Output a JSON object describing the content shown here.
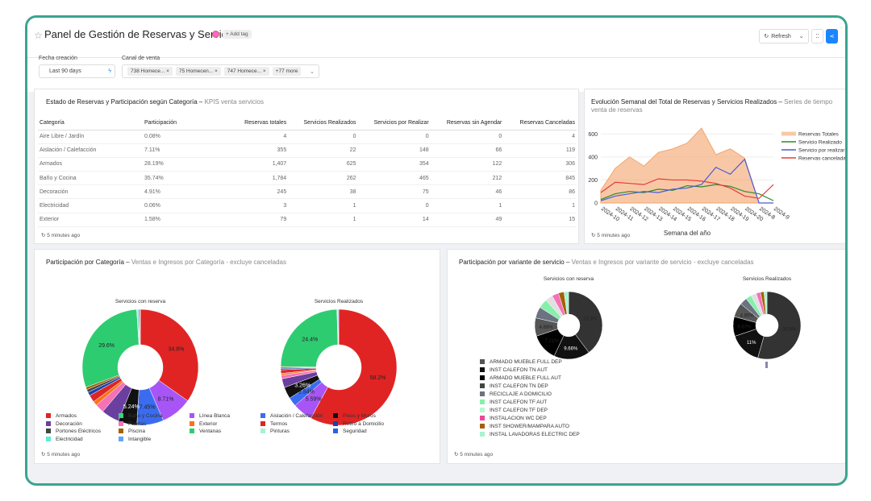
{
  "header": {
    "title": "Panel de Gestión de Reservas y Servicios",
    "add_tag": "+ Add tag",
    "refresh": "Refresh",
    "star_icon": "star-icon"
  },
  "filters": {
    "fecha_label": "Fecha creación",
    "fecha_value": "Last 90 days",
    "canal_label": "Canal de venta",
    "chips": [
      "738 Homece...",
      "75 Homecen...",
      "747 Homece..."
    ],
    "more": "+77 more"
  },
  "kpi_table": {
    "title": "Estado de Reservas y Participación según Categoría",
    "subtitle": "KPIS venta servicios",
    "columns": [
      "Categoría",
      "Participación",
      "Reservas totales",
      "Servicios Realizados",
      "Servicios por Realizar",
      "Reservas sin Agendar",
      "Reservas Canceladas"
    ],
    "rows": [
      [
        "Aire Libre / Jardín",
        "0.08%",
        "4",
        "0",
        "0",
        "0",
        "4"
      ],
      [
        "Aislación / Calefacción",
        "7.11%",
        "355",
        "22",
        "148",
        "66",
        "119"
      ],
      [
        "Armados",
        "28.19%",
        "1,407",
        "625",
        "354",
        "122",
        "306"
      ],
      [
        "Baño y Cocina",
        "35.74%",
        "1,784",
        "262",
        "465",
        "212",
        "845"
      ],
      [
        "Decoración",
        "4.91%",
        "245",
        "38",
        "75",
        "46",
        "86"
      ],
      [
        "Electricidad",
        "0.06%",
        "3",
        "1",
        "0",
        "1",
        "1"
      ],
      [
        "Exterior",
        "1.58%",
        "79",
        "1",
        "14",
        "49",
        "15"
      ]
    ],
    "updated": "5 minutes ago"
  },
  "weekly": {
    "title": "Evolución Semanal del Total de Reservas y Servicios Realizados",
    "subtitle": "Series de tiempo venta de reservas",
    "updated": "5 minutes ago"
  },
  "cat_card": {
    "title": "Participación por Categoría",
    "subtitle": "Ventas e Ingresos por Categoría - excluye canceladas",
    "pie1_title": "Servicios con reserva",
    "pie2_title": "Servicios Realizados",
    "legend": [
      "Armados",
      "Baño y Cocina",
      "Línea Blanca",
      "Aislación / Calefacción",
      "Pisos y Muros",
      "Decoración",
      "Puertas",
      "Exterior",
      "Termos",
      "Retiro a Domicilio",
      "Portones Eléctricos",
      "Piscina",
      "Ventanas",
      "Pinturas",
      "Seguridad",
      "Electricidad",
      "Intangible"
    ],
    "updated": "5 minutes ago"
  },
  "var_card": {
    "title": "Participación por variante de servicio",
    "subtitle": "Ventas e Ingresos por variante de servicio - excluye canceladas",
    "pie1_title": "Servicios con reserva",
    "pie2_title": "Servicios Realizados",
    "legend": [
      "ARMADO MUEBLE FULL DEP",
      "INST CALEFON TN AUT",
      "ARMADO MUEBLE FULL AUT",
      "INST CALEFON TN DEP",
      "RECICLAJE A DOMICILIO",
      "INST CALEFON TF AUT",
      "INST CALEFON TF DEP",
      "INSTALACION WC DEP",
      "INST SHOWER/MAMPARA AUTO",
      "INSTAL LAVADORAS ELECTRIC DEP"
    ],
    "updated": "5 minutes ago"
  },
  "chart_data": [
    {
      "type": "area",
      "title": "",
      "xlabel": "Semana del año",
      "ylabel": "",
      "x": [
        "2024-10",
        "2024-11",
        "2024-12",
        "2024-13",
        "2024-14",
        "2024-15",
        "2024-16",
        "2024-17",
        "2024-18",
        "2024-19",
        "2024-20",
        "2024-8",
        "2024-9"
      ],
      "ylim": [
        0,
        700
      ],
      "yticks": [
        0,
        200,
        400,
        600
      ],
      "legend_position": "right",
      "series": [
        {
          "name": "Reservas Totales",
          "type": "area",
          "color": "#f4a46a",
          "values": [
            110,
            300,
            400,
            320,
            440,
            470,
            520,
            650,
            420,
            470,
            390,
            0,
            0
          ]
        },
        {
          "name": "Servicio Realizado",
          "type": "line",
          "color": "#2a8a2a",
          "values": [
            30,
            80,
            100,
            90,
            120,
            110,
            150,
            140,
            160,
            145,
            100,
            80,
            20
          ]
        },
        {
          "name": "Servicio por realizar",
          "type": "line",
          "color": "#4a5ad8",
          "values": [
            20,
            60,
            80,
            100,
            90,
            120,
            130,
            160,
            310,
            250,
            380,
            0,
            0
          ]
        },
        {
          "name": "Reservas canceladas",
          "type": "line",
          "color": "#e83a3a",
          "values": [
            90,
            180,
            170,
            160,
            210,
            200,
            200,
            190,
            170,
            130,
            60,
            40,
            160
          ]
        }
      ]
    },
    {
      "type": "pie",
      "title": "Servicios con reserva",
      "donut": true,
      "labels": [
        "Armados",
        "Baño y Cocina",
        "Línea Blanca",
        "Aislación / Calefacción",
        "Pisos y Muros",
        "Decoración",
        "Puertas",
        "Exterior",
        "Termos",
        "Retiro a Domicilio",
        "Portones Eléctricos",
        "Piscina",
        "Ventanas",
        "Pinturas",
        "Seguridad",
        "Electricidad",
        "Intangible"
      ],
      "values": [
        34.8,
        0,
        8.71,
        7.45,
        5.24,
        5.0,
        2.5,
        1.2,
        2.0,
        1.0,
        0.8,
        0.7,
        29.6,
        0.5,
        0.3,
        0.2,
        0
      ],
      "slice_labels": [
        "34.8%",
        "",
        "8.71%",
        "7.45%",
        "5.24%",
        "",
        "",
        "",
        "",
        "",
        "",
        "",
        "29.6%",
        "",
        "",
        "",
        ""
      ]
    },
    {
      "type": "pie",
      "title": "Servicios Realizados",
      "donut": true,
      "labels": [
        "Armados",
        "Baño y Cocina",
        "Línea Blanca",
        "Aislación / Calefacción",
        "Pisos y Muros",
        "Decoración",
        "Puertas",
        "Exterior",
        "Termos",
        "Retiro a Domicilio",
        "Portones Eléctricos",
        "Piscina",
        "Ventanas",
        "Pinturas",
        "Seguridad",
        "Electricidad",
        "Intangible"
      ],
      "values": [
        58.2,
        0,
        5.59,
        2.54,
        3.26,
        2.5,
        1.0,
        0.5,
        1.0,
        0.4,
        0.3,
        0.2,
        24.4,
        0.2,
        0.2,
        0.1,
        0
      ],
      "slice_labels": [
        "58.2%",
        "",
        "5.59%",
        "2.54%",
        "3.26%",
        "",
        "",
        "",
        "",
        "",
        "",
        "",
        "24.4%",
        "",
        "",
        "",
        ""
      ]
    },
    {
      "type": "pie",
      "title": "Servicios con reserva",
      "donut": true,
      "labels": [
        "ARMADO MUEBLE FULL DEP",
        "INST CALEFON TN AUT",
        "ARMADO MUEBLE FULL AUT",
        "INST CALEFON TN DEP",
        "RECICLAJE A DOMICILIO",
        "INST CALEFON TF AUT",
        "INST CALEFON TF DEP",
        "INSTALACION WC DEP",
        "INST SHOWER/MAMPARA AUTO",
        "INSTAL LAVADORAS ELECTRIC DEP"
      ],
      "values": [
        22.3,
        9.66,
        7.21,
        4.89,
        3.0,
        2.5,
        2.0,
        1.8,
        1.5,
        1.2
      ],
      "slice_labels": [
        "22.3%",
        "9.66%",
        "7.21%",
        "4.89%",
        "",
        "",
        "",
        "",
        "",
        ""
      ]
    },
    {
      "type": "pie",
      "title": "Servicios Realizados",
      "donut": true,
      "labels": [
        "ARMADO MUEBLE FULL DEP",
        "INST CALEFON TN AUT",
        "ARMADO MUEBLE FULL AUT",
        "INST CALEFON TN DEP",
        "RECICLAJE A DOMICILIO",
        "INST CALEFON TF AUT",
        "INST CALEFON TF DEP",
        "INSTALACION WC DEP",
        "INST SHOWER/MAMPARA AUTO",
        "INSTAL LAVADORAS ELECTRIC DEP"
      ],
      "values": [
        38.8,
        11,
        6.67,
        4.85,
        2.5,
        2.0,
        1.8,
        1.5,
        1.2,
        1.0
      ],
      "slice_labels": [
        "38.8%",
        "11%",
        "6.67%",
        "4.85%",
        "",
        "",
        "",
        "",
        "",
        ""
      ]
    }
  ],
  "colors": {
    "accent": "#1a85ff",
    "frame": "#3aa58f"
  }
}
